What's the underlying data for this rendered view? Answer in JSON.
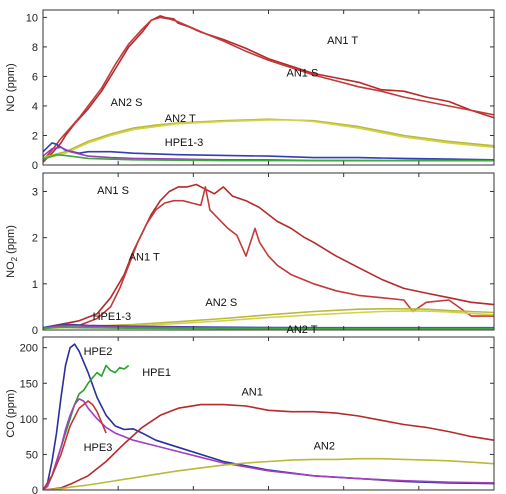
{
  "chart_data": [
    {
      "type": "line",
      "ylabel_parts": {
        "main": "NO (ppm)",
        "sub": ""
      },
      "ylim": [
        0,
        10.5
      ],
      "yticks": [
        0,
        2,
        4,
        6,
        8,
        10
      ],
      "xlim": [
        0,
        100
      ],
      "grid": false,
      "series": [
        {
          "name": "AN1 T",
          "color": "#b52a2a",
          "x": [
            0,
            2,
            4,
            5,
            7,
            10,
            13,
            16,
            19,
            22,
            24,
            26,
            27,
            29,
            30,
            32,
            35,
            40,
            45,
            50,
            55,
            60,
            65,
            70,
            75,
            80,
            85,
            90,
            95,
            100
          ],
          "y": [
            0.2,
            0.8,
            1.5,
            2.0,
            2.8,
            3.8,
            5.0,
            6.5,
            8.0,
            9.0,
            9.8,
            10.1,
            10.0,
            9.9,
            9.6,
            9.4,
            9.0,
            8.5,
            7.9,
            7.2,
            6.7,
            6.2,
            5.9,
            5.6,
            5.1,
            5.0,
            4.6,
            4.3,
            3.7,
            3.2
          ]
        },
        {
          "name": "AN1 S",
          "color": "#c23a3a",
          "x": [
            0,
            2,
            4,
            6,
            8,
            10,
            13,
            16,
            19,
            22,
            24,
            26,
            28,
            30,
            33,
            36,
            40,
            45,
            50,
            55,
            60,
            65,
            70,
            75,
            80,
            85,
            90,
            95,
            100
          ],
          "y": [
            0.3,
            1.0,
            1.8,
            2.5,
            3.2,
            4.0,
            5.2,
            6.8,
            8.2,
            9.2,
            9.8,
            10.0,
            9.9,
            9.7,
            9.3,
            8.9,
            8.4,
            7.7,
            7.1,
            6.6,
            6.1,
            5.7,
            5.3,
            5.0,
            4.6,
            4.3,
            4.0,
            3.7,
            3.4
          ]
        },
        {
          "name": "AN2 S",
          "color": "#b9b93a",
          "x": [
            0,
            5,
            10,
            15,
            20,
            25,
            30,
            40,
            50,
            55,
            60,
            70,
            80,
            90,
            100
          ],
          "y": [
            0.5,
            0.9,
            1.6,
            2.1,
            2.5,
            2.7,
            2.85,
            3.0,
            3.1,
            3.05,
            3.0,
            2.6,
            2.0,
            1.6,
            1.3
          ]
        },
        {
          "name": "AN2 T",
          "color": "#d2d24a",
          "x": [
            0,
            5,
            10,
            15,
            20,
            25,
            30,
            40,
            50,
            55,
            60,
            70,
            80,
            90,
            100
          ],
          "y": [
            0.4,
            0.8,
            1.5,
            2.0,
            2.4,
            2.6,
            2.8,
            2.95,
            3.05,
            3.05,
            2.95,
            2.5,
            1.9,
            1.5,
            1.2
          ]
        },
        {
          "name": "HPE1-3",
          "color": "#2f3fb5",
          "x": [
            0,
            2,
            3,
            5,
            8,
            10,
            15,
            20,
            30,
            40,
            50,
            60,
            70,
            80,
            90,
            100
          ],
          "y": [
            0.9,
            1.5,
            1.4,
            1.0,
            0.8,
            0.9,
            0.9,
            0.8,
            0.7,
            0.65,
            0.6,
            0.5,
            0.5,
            0.45,
            0.4,
            0.35
          ]
        },
        {
          "name": "",
          "color": "#9a3fb8",
          "x": [
            0,
            2,
            4,
            6,
            10,
            15,
            20,
            30,
            40,
            50,
            60,
            70,
            80,
            90,
            100
          ],
          "y": [
            0.6,
            1.1,
            1.2,
            0.9,
            0.6,
            0.5,
            0.45,
            0.4,
            0.35,
            0.35,
            0.3,
            0.3,
            0.3,
            0.3,
            0.3
          ]
        },
        {
          "name": "",
          "color": "#3da83d",
          "x": [
            0,
            3,
            6,
            10,
            20,
            40,
            60,
            80,
            100
          ],
          "y": [
            0.4,
            0.7,
            0.6,
            0.45,
            0.35,
            0.3,
            0.3,
            0.3,
            0.3
          ]
        }
      ],
      "annotations": [
        {
          "text": "AN1 T",
          "x": 63,
          "y": 8.2
        },
        {
          "text": "AN1 S",
          "x": 54,
          "y": 6.0
        },
        {
          "text": "AN2 S",
          "x": 15,
          "y": 4.0
        },
        {
          "text": "AN2 T",
          "x": 27,
          "y": 2.9
        },
        {
          "text": "HPE1-3",
          "x": 27,
          "y": 1.3
        }
      ]
    },
    {
      "type": "line",
      "ylabel_parts": {
        "main": "NO",
        "sub": "2",
        "tail": " (ppm)"
      },
      "ylim": [
        0,
        3.4
      ],
      "yticks": [
        0,
        1,
        2,
        3
      ],
      "xlim": [
        0,
        100
      ],
      "grid": false,
      "series": [
        {
          "name": "AN1 S",
          "color": "#b52a2a",
          "x": [
            0,
            8,
            12,
            15,
            18,
            20,
            22,
            24,
            26,
            28,
            30,
            32,
            34,
            36,
            38,
            40,
            42,
            45,
            48,
            50,
            52,
            55,
            58,
            60,
            65,
            70,
            75,
            80,
            85,
            90,
            95,
            100
          ],
          "y": [
            0.05,
            0.2,
            0.35,
            0.7,
            1.2,
            1.7,
            2.1,
            2.5,
            2.8,
            3.0,
            3.1,
            3.1,
            3.15,
            3.05,
            2.95,
            3.1,
            2.9,
            2.8,
            2.65,
            2.5,
            2.35,
            2.2,
            2.0,
            1.9,
            1.6,
            1.35,
            1.1,
            0.9,
            0.8,
            0.7,
            0.6,
            0.55
          ]
        },
        {
          "name": "AN1 T",
          "color": "#c23a3a",
          "x": [
            0,
            8,
            12,
            15,
            17,
            19,
            21,
            23,
            25,
            27,
            29,
            31,
            33,
            35,
            36,
            37,
            39,
            41,
            43,
            45,
            47,
            48,
            50,
            52,
            55,
            60,
            65,
            70,
            75,
            80,
            82,
            85,
            90,
            95,
            100
          ],
          "y": [
            0.05,
            0.1,
            0.25,
            0.5,
            0.9,
            1.4,
            1.9,
            2.3,
            2.6,
            2.75,
            2.8,
            2.8,
            2.75,
            2.7,
            3.1,
            2.6,
            2.4,
            2.2,
            2.05,
            1.6,
            2.2,
            1.9,
            1.6,
            1.4,
            1.2,
            1.0,
            0.85,
            0.75,
            0.7,
            0.65,
            0.4,
            0.6,
            0.65,
            0.3,
            0.3
          ]
        },
        {
          "name": "AN2 S",
          "color": "#b9b93a",
          "x": [
            0,
            10,
            20,
            30,
            40,
            50,
            60,
            70,
            75,
            80,
            85,
            90,
            95,
            100
          ],
          "y": [
            0.05,
            0.08,
            0.12,
            0.18,
            0.25,
            0.33,
            0.4,
            0.45,
            0.46,
            0.46,
            0.45,
            0.42,
            0.4,
            0.38
          ]
        },
        {
          "name": "AN2 T",
          "color": "#d2d24a",
          "x": [
            0,
            10,
            20,
            30,
            40,
            50,
            60,
            70,
            75,
            80,
            85,
            90,
            95,
            100
          ],
          "y": [
            0.04,
            0.06,
            0.09,
            0.14,
            0.2,
            0.27,
            0.33,
            0.38,
            0.4,
            0.41,
            0.41,
            0.39,
            0.36,
            0.33
          ]
        },
        {
          "name": "HPE1-3",
          "color": "#2f3fb5",
          "x": [
            0,
            3,
            6,
            10,
            20,
            40,
            60,
            80,
            100
          ],
          "y": [
            0.05,
            0.1,
            0.12,
            0.1,
            0.08,
            0.06,
            0.05,
            0.05,
            0.05
          ]
        },
        {
          "name": "",
          "color": "#9a3fb8",
          "x": [
            0,
            3,
            6,
            10,
            20,
            40,
            60,
            80,
            100
          ],
          "y": [
            0.04,
            0.08,
            0.1,
            0.08,
            0.06,
            0.05,
            0.04,
            0.04,
            0.04
          ]
        },
        {
          "name": "",
          "color": "#3da83d",
          "x": [
            0,
            4,
            8,
            20,
            40,
            60,
            80,
            100
          ],
          "y": [
            0.03,
            0.06,
            0.05,
            0.04,
            0.03,
            0.03,
            0.03,
            0.03
          ]
        }
      ],
      "annotations": [
        {
          "text": "AN1 S",
          "x": 12,
          "y": 2.95
        },
        {
          "text": "AN1 T",
          "x": 19,
          "y": 1.5
        },
        {
          "text": "HPE1-3",
          "x": 11,
          "y": 0.22
        },
        {
          "text": "AN2 S",
          "x": 36,
          "y": 0.52
        },
        {
          "text": "AN2 T",
          "x": 54,
          "y": -0.07
        }
      ]
    },
    {
      "type": "line",
      "ylabel_parts": {
        "main": "CO (ppm)",
        "sub": ""
      },
      "ylim": [
        0,
        215
      ],
      "yticks": [
        0,
        50,
        100,
        150,
        200
      ],
      "xlim": [
        0,
        100
      ],
      "grid": false,
      "series": [
        {
          "name": "HPE2",
          "color": "#2a2f9a",
          "x": [
            0,
            1,
            2,
            3,
            4,
            5,
            6,
            7,
            8,
            10,
            12,
            14,
            16,
            18,
            20,
            22,
            25,
            30,
            35,
            40,
            50,
            60,
            70,
            80,
            90,
            100
          ],
          "y": [
            0,
            10,
            40,
            80,
            130,
            175,
            200,
            205,
            195,
            165,
            130,
            105,
            90,
            85,
            86,
            80,
            70,
            60,
            50,
            40,
            28,
            20,
            16,
            12,
            10,
            9
          ]
        },
        {
          "name": "HPE1",
          "color": "#2aa02a",
          "x": [
            0,
            2,
            4,
            6,
            7,
            8,
            9,
            10,
            11,
            12,
            13,
            14,
            15,
            16,
            17,
            18,
            19
          ],
          "y": [
            0,
            20,
            60,
            100,
            120,
            135,
            140,
            150,
            158,
            165,
            160,
            175,
            168,
            165,
            172,
            170,
            175
          ]
        },
        {
          "name": "HPE3",
          "color": "#a23fc0",
          "x": [
            0,
            1,
            2,
            3,
            4,
            5,
            6,
            7,
            8,
            9,
            10,
            12,
            14,
            16,
            18,
            20,
            25,
            30,
            35,
            40,
            50,
            60,
            70,
            80,
            90,
            100
          ],
          "y": [
            0,
            5,
            20,
            40,
            60,
            85,
            105,
            120,
            128,
            125,
            115,
            100,
            88,
            80,
            75,
            70,
            62,
            54,
            46,
            38,
            27,
            20,
            16,
            13,
            11,
            10
          ]
        },
        {
          "name": "",
          "color": "#c43434",
          "x": [
            0,
            2,
            4,
            6,
            8,
            10,
            11,
            12,
            13,
            14
          ],
          "y": [
            0,
            20,
            50,
            90,
            115,
            125,
            120,
            110,
            95,
            80
          ]
        },
        {
          "name": "AN1",
          "color": "#b52a2a",
          "x": [
            0,
            4,
            6,
            10,
            14,
            18,
            22,
            26,
            30,
            35,
            40,
            45,
            50,
            55,
            60,
            65,
            70,
            75,
            80,
            85,
            90,
            95,
            100
          ],
          "y": [
            0,
            3,
            8,
            20,
            40,
            65,
            88,
            105,
            115,
            120,
            120,
            118,
            112,
            110,
            110,
            108,
            104,
            98,
            92,
            88,
            82,
            75,
            70
          ]
        },
        {
          "name": "AN2",
          "color": "#b9b93a",
          "x": [
            0,
            4,
            6,
            10,
            15,
            20,
            25,
            30,
            35,
            40,
            45,
            50,
            55,
            60,
            65,
            70,
            75,
            80,
            85,
            90,
            95,
            100
          ],
          "y": [
            0,
            2,
            4,
            7,
            12,
            17,
            22,
            27,
            31,
            35,
            38,
            40,
            42,
            43,
            43,
            44,
            44,
            43,
            42,
            41,
            39,
            37
          ]
        }
      ],
      "annotations": [
        {
          "text": "HPE2",
          "x": 9,
          "y": 190
        },
        {
          "text": "HPE1",
          "x": 22,
          "y": 160
        },
        {
          "text": "AN1",
          "x": 44,
          "y": 133
        },
        {
          "text": "HPE3",
          "x": 9,
          "y": 55
        },
        {
          "text": "AN2",
          "x": 60,
          "y": 57
        }
      ]
    }
  ]
}
